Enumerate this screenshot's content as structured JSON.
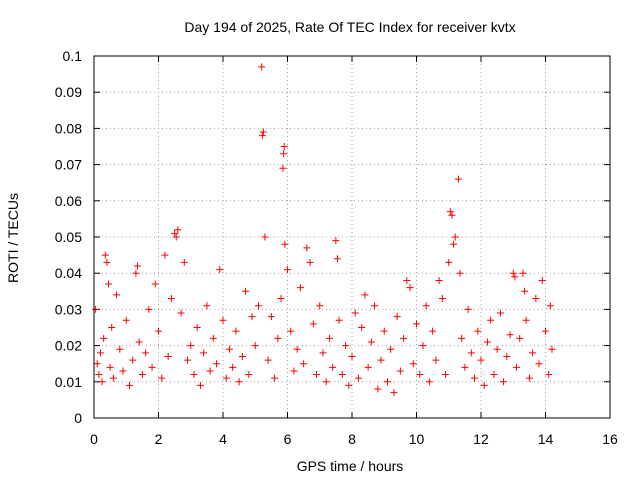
{
  "chart_data": {
    "type": "scatter",
    "title": "Day 194 of 2025, Rate Of TEC Index for receiver kvtx",
    "xlabel": "GPS time / hours",
    "ylabel": "ROTI / TECUs",
    "xlim": [
      0,
      16
    ],
    "ylim": [
      0,
      0.1
    ],
    "xticks": [
      "0",
      "2",
      "4",
      "6",
      "8",
      "10",
      "12",
      "14",
      "16"
    ],
    "yticks": [
      "0",
      "0.01",
      "0.02",
      "0.03",
      "0.04",
      "0.05",
      "0.06",
      "0.07",
      "0.08",
      "0.09",
      "0.1"
    ],
    "grid": true,
    "marker": "+",
    "color": "#ff0000",
    "series": [
      {
        "name": "ROTI",
        "points": [
          [
            0.05,
            0.03
          ],
          [
            0.1,
            0.015
          ],
          [
            0.15,
            0.012
          ],
          [
            0.2,
            0.018
          ],
          [
            0.25,
            0.01
          ],
          [
            0.3,
            0.022
          ],
          [
            0.35,
            0.045
          ],
          [
            0.4,
            0.043
          ],
          [
            0.45,
            0.037
          ],
          [
            0.5,
            0.014
          ],
          [
            0.55,
            0.025
          ],
          [
            0.6,
            0.011
          ],
          [
            0.7,
            0.034
          ],
          [
            0.8,
            0.019
          ],
          [
            0.9,
            0.013
          ],
          [
            1.0,
            0.027
          ],
          [
            1.1,
            0.009
          ],
          [
            1.2,
            0.016
          ],
          [
            1.3,
            0.04
          ],
          [
            1.35,
            0.042
          ],
          [
            1.4,
            0.021
          ],
          [
            1.5,
            0.012
          ],
          [
            1.6,
            0.018
          ],
          [
            1.7,
            0.03
          ],
          [
            1.8,
            0.014
          ],
          [
            1.9,
            0.037
          ],
          [
            2.0,
            0.024
          ],
          [
            2.1,
            0.011
          ],
          [
            2.2,
            0.045
          ],
          [
            2.3,
            0.017
          ],
          [
            2.4,
            0.033
          ],
          [
            2.5,
            0.051
          ],
          [
            2.55,
            0.05
          ],
          [
            2.6,
            0.052
          ],
          [
            2.7,
            0.029
          ],
          [
            2.8,
            0.043
          ],
          [
            2.9,
            0.016
          ],
          [
            3.0,
            0.02
          ],
          [
            3.1,
            0.012
          ],
          [
            3.2,
            0.025
          ],
          [
            3.3,
            0.009
          ],
          [
            3.4,
            0.018
          ],
          [
            3.5,
            0.031
          ],
          [
            3.6,
            0.013
          ],
          [
            3.7,
            0.022
          ],
          [
            3.8,
            0.015
          ],
          [
            3.9,
            0.041
          ],
          [
            4.0,
            0.027
          ],
          [
            4.1,
            0.011
          ],
          [
            4.2,
            0.019
          ],
          [
            4.3,
            0.014
          ],
          [
            4.4,
            0.024
          ],
          [
            4.5,
            0.01
          ],
          [
            4.6,
            0.017
          ],
          [
            4.7,
            0.035
          ],
          [
            4.8,
            0.012
          ],
          [
            4.9,
            0.028
          ],
          [
            5.0,
            0.02
          ],
          [
            5.1,
            0.031
          ],
          [
            5.2,
            0.097
          ],
          [
            5.25,
            0.079
          ],
          [
            5.22,
            0.078
          ],
          [
            5.3,
            0.05
          ],
          [
            5.4,
            0.016
          ],
          [
            5.5,
            0.028
          ],
          [
            5.6,
            0.011
          ],
          [
            5.7,
            0.022
          ],
          [
            5.8,
            0.033
          ],
          [
            5.9,
            0.075
          ],
          [
            5.88,
            0.073
          ],
          [
            5.86,
            0.069
          ],
          [
            5.92,
            0.048
          ],
          [
            6.0,
            0.041
          ],
          [
            6.1,
            0.024
          ],
          [
            6.2,
            0.013
          ],
          [
            6.3,
            0.019
          ],
          [
            6.4,
            0.036
          ],
          [
            6.5,
            0.015
          ],
          [
            6.6,
            0.047
          ],
          [
            6.7,
            0.043
          ],
          [
            6.8,
            0.026
          ],
          [
            6.9,
            0.012
          ],
          [
            7.0,
            0.031
          ],
          [
            7.1,
            0.018
          ],
          [
            7.2,
            0.01
          ],
          [
            7.3,
            0.022
          ],
          [
            7.4,
            0.014
          ],
          [
            7.5,
            0.049
          ],
          [
            7.55,
            0.044
          ],
          [
            7.6,
            0.027
          ],
          [
            7.7,
            0.012
          ],
          [
            7.8,
            0.02
          ],
          [
            7.9,
            0.009
          ],
          [
            8.0,
            0.017
          ],
          [
            8.1,
            0.029
          ],
          [
            8.2,
            0.011
          ],
          [
            8.3,
            0.025
          ],
          [
            8.4,
            0.034
          ],
          [
            8.5,
            0.014
          ],
          [
            8.6,
            0.021
          ],
          [
            8.7,
            0.031
          ],
          [
            8.8,
            0.008
          ],
          [
            8.9,
            0.016
          ],
          [
            9.0,
            0.024
          ],
          [
            9.1,
            0.01
          ],
          [
            9.2,
            0.019
          ],
          [
            9.3,
            0.007
          ],
          [
            9.4,
            0.028
          ],
          [
            9.5,
            0.013
          ],
          [
            9.6,
            0.022
          ],
          [
            9.7,
            0.038
          ],
          [
            9.8,
            0.036
          ],
          [
            9.9,
            0.015
          ],
          [
            10.0,
            0.026
          ],
          [
            10.1,
            0.012
          ],
          [
            10.2,
            0.02
          ],
          [
            10.3,
            0.031
          ],
          [
            10.4,
            0.01
          ],
          [
            10.5,
            0.024
          ],
          [
            10.6,
            0.016
          ],
          [
            10.7,
            0.038
          ],
          [
            10.8,
            0.033
          ],
          [
            10.9,
            0.012
          ],
          [
            11.0,
            0.043
          ],
          [
            11.05,
            0.057
          ],
          [
            11.1,
            0.056
          ],
          [
            11.15,
            0.048
          ],
          [
            11.2,
            0.05
          ],
          [
            11.3,
            0.066
          ],
          [
            11.35,
            0.04
          ],
          [
            11.4,
            0.022
          ],
          [
            11.5,
            0.014
          ],
          [
            11.6,
            0.03
          ],
          [
            11.7,
            0.018
          ],
          [
            11.8,
            0.011
          ],
          [
            11.9,
            0.024
          ],
          [
            12.0,
            0.016
          ],
          [
            12.1,
            0.009
          ],
          [
            12.2,
            0.021
          ],
          [
            12.3,
            0.027
          ],
          [
            12.4,
            0.012
          ],
          [
            12.5,
            0.019
          ],
          [
            12.6,
            0.029
          ],
          [
            12.7,
            0.01
          ],
          [
            12.8,
            0.017
          ],
          [
            12.9,
            0.023
          ],
          [
            13.0,
            0.04
          ],
          [
            13.05,
            0.039
          ],
          [
            13.1,
            0.014
          ],
          [
            13.2,
            0.022
          ],
          [
            13.3,
            0.04
          ],
          [
            13.35,
            0.035
          ],
          [
            13.4,
            0.027
          ],
          [
            13.5,
            0.011
          ],
          [
            13.6,
            0.018
          ],
          [
            13.7,
            0.033
          ],
          [
            13.8,
            0.015
          ],
          [
            13.9,
            0.038
          ],
          [
            14.0,
            0.024
          ],
          [
            14.1,
            0.012
          ],
          [
            14.15,
            0.031
          ],
          [
            14.2,
            0.019
          ]
        ]
      }
    ]
  }
}
